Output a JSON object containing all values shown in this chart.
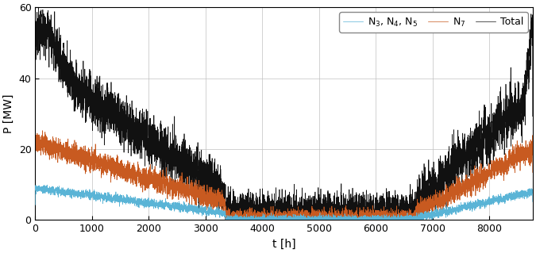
{
  "xlabel": "t [h]",
  "ylabel": "P [MW]",
  "xlim": [
    0,
    8760
  ],
  "ylim": [
    0,
    60
  ],
  "yticks": [
    0,
    20,
    40,
    60
  ],
  "xticks": [
    0,
    1000,
    2000,
    3000,
    4000,
    5000,
    6000,
    7000,
    8000
  ],
  "color_n345": "#5ab4d6",
  "color_n7": "#c85a20",
  "color_total": "#111111",
  "legend_labels": [
    "N$_3$, N$_4$, N$_5$",
    "N$_7$",
    "Total"
  ],
  "seed": 42,
  "n_points": 8760,
  "winter1_end": 3300,
  "summer_start": 3350,
  "summer_end": 6700,
  "winter2_start": 6700
}
